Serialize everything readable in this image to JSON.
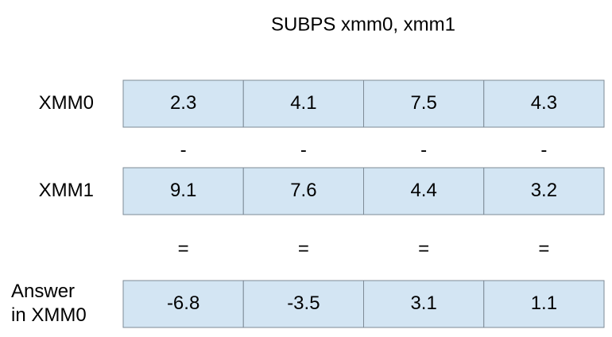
{
  "title": "SUBPS xmm0, xmm1",
  "registers": [
    {
      "label": [
        "XMM0"
      ],
      "cells": [
        "2.3",
        "4.1",
        "7.5",
        "4.3"
      ]
    },
    {
      "label": [
        "XMM1"
      ],
      "cells": [
        "9.1",
        "7.6",
        "4.4",
        "3.2"
      ]
    },
    {
      "label": [
        "Answer",
        "in XMM0"
      ],
      "cells": [
        "-6.8",
        "-3.5",
        "3.1",
        "1.1"
      ]
    }
  ],
  "operators": [
    [
      "-",
      "-",
      "-",
      "-"
    ],
    [
      "=",
      "=",
      "=",
      "="
    ]
  ]
}
